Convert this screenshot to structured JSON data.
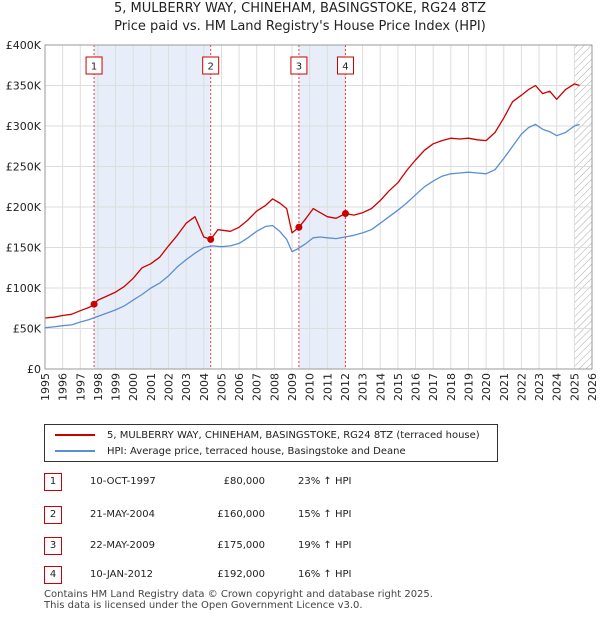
{
  "title_line1": "5, MULBERRY WAY, CHINEHAM, BASINGSTOKE, RG24 8TZ",
  "title_line2": "Price paid vs. HM Land Registry's House Price Index (HPI)",
  "colors": {
    "property": "#cc0000",
    "hpi": "#5b8fcf",
    "shade": "#e8eef9",
    "marker_line": "#dd4444",
    "hatch": "#aaaaaa"
  },
  "chart_data": {
    "type": "line",
    "title": "5, MULBERRY WAY, CHINEHAM, BASINGSTOKE, RG24 8TZ — Price paid vs. HM Land Registry's House Price Index (HPI)",
    "xlabel": "",
    "ylabel": "",
    "xlim": [
      1995,
      2026
    ],
    "ylim": [
      0,
      400000
    ],
    "x_ticks": [
      1995,
      1996,
      1997,
      1998,
      1999,
      2000,
      2001,
      2002,
      2003,
      2004,
      2005,
      2006,
      2007,
      2008,
      2009,
      2010,
      2011,
      2012,
      2013,
      2014,
      2015,
      2016,
      2017,
      2018,
      2019,
      2020,
      2021,
      2022,
      2023,
      2024,
      2025,
      2026
    ],
    "y_ticks": [
      0,
      50000,
      100000,
      150000,
      200000,
      250000,
      300000,
      350000,
      400000
    ],
    "y_tick_labels": [
      "£0",
      "£50K",
      "£100K",
      "£150K",
      "£200K",
      "£250K",
      "£300K",
      "£350K",
      "£400K"
    ],
    "grid": true,
    "shaded_ranges": [
      [
        1997.78,
        2004.39
      ],
      [
        2009.39,
        2012.03
      ]
    ],
    "forecast_from": 2025.0,
    "series": [
      {
        "name": "5, MULBERRY WAY, CHINEHAM, BASINGSTOKE, RG24 8TZ (terraced house)",
        "x": [
          1995,
          1995.5,
          1996,
          1996.5,
          1997,
          1997.5,
          1997.78,
          1998,
          1998.5,
          1999,
          1999.5,
          2000,
          2000.5,
          2001,
          2001.5,
          2002,
          2002.5,
          2003,
          2003.5,
          2004,
          2004.39,
          2004.8,
          2005.5,
          2006,
          2006.5,
          2007,
          2007.5,
          2007.9,
          2008.3,
          2008.7,
          2009,
          2009.39,
          2009.8,
          2010.2,
          2010.6,
          2011,
          2011.5,
          2012.03,
          2012.5,
          2013,
          2013.5,
          2014,
          2014.5,
          2015,
          2015.5,
          2016,
          2016.5,
          2017,
          2017.5,
          2018,
          2018.5,
          2019,
          2019.5,
          2020,
          2020.5,
          2021,
          2021.5,
          2022,
          2022.4,
          2022.8,
          2023.2,
          2023.6,
          2024,
          2024.5,
          2025,
          2025.3
        ],
        "values": [
          63000,
          64000,
          66000,
          67500,
          72000,
          76000,
          80000,
          85000,
          90000,
          95000,
          102000,
          112000,
          125000,
          130000,
          138000,
          152000,
          165000,
          180000,
          188000,
          163000,
          160000,
          172000,
          170000,
          175000,
          184000,
          195000,
          202000,
          210000,
          205000,
          198000,
          168000,
          175000,
          186000,
          198000,
          193000,
          188000,
          186000,
          192000,
          190000,
          193000,
          198000,
          208000,
          220000,
          230000,
          245000,
          258000,
          270000,
          278000,
          282000,
          285000,
          284000,
          285000,
          283000,
          282000,
          292000,
          310000,
          330000,
          338000,
          345000,
          350000,
          340000,
          343000,
          333000,
          345000,
          352000,
          350000
        ]
      },
      {
        "name": "HPI: Average price, terraced house, Basingstoke and Deane",
        "x": [
          1995,
          1995.5,
          1996,
          1996.5,
          1997,
          1997.5,
          1998,
          1998.5,
          1999,
          1999.5,
          2000,
          2000.5,
          2001,
          2001.5,
          2002,
          2002.5,
          2003,
          2003.5,
          2004,
          2004.5,
          2005,
          2005.5,
          2006,
          2006.5,
          2007,
          2007.5,
          2007.9,
          2008.3,
          2008.7,
          2009,
          2009.3,
          2009.8,
          2010.2,
          2010.6,
          2011,
          2011.5,
          2012,
          2012.5,
          2013,
          2013.5,
          2014,
          2014.5,
          2015,
          2015.5,
          2016,
          2016.5,
          2017,
          2017.5,
          2018,
          2018.5,
          2019,
          2019.5,
          2020,
          2020.5,
          2021,
          2021.5,
          2022,
          2022.4,
          2022.8,
          2023.2,
          2023.6,
          2024,
          2024.5,
          2025,
          2025.3
        ],
        "values": [
          51000,
          52000,
          53500,
          54500,
          58000,
          61000,
          65000,
          69000,
          73000,
          78000,
          85000,
          92000,
          100000,
          106000,
          115000,
          126000,
          135000,
          143000,
          150000,
          152000,
          151000,
          152000,
          155000,
          162000,
          170000,
          176000,
          177000,
          170000,
          160000,
          145000,
          148000,
          155000,
          162000,
          163000,
          162000,
          161000,
          163000,
          165000,
          168000,
          172000,
          180000,
          188000,
          196000,
          205000,
          215000,
          225000,
          232000,
          238000,
          241000,
          242000,
          243000,
          242000,
          241000,
          246000,
          260000,
          275000,
          290000,
          298000,
          302000,
          296000,
          293000,
          288000,
          292000,
          300000,
          302000
        ]
      }
    ],
    "markers": [
      {
        "label": "1",
        "x": 1997.78,
        "value": 80000
      },
      {
        "label": "2",
        "x": 2004.39,
        "value": 160000
      },
      {
        "label": "3",
        "x": 2009.39,
        "value": 175000
      },
      {
        "label": "4",
        "x": 2012.03,
        "value": 192000
      }
    ]
  },
  "legend": {
    "property": "5, MULBERRY WAY, CHINEHAM, BASINGSTOKE, RG24 8TZ (terraced house)",
    "hpi": "HPI: Average price, terraced house, Basingstoke and Deane"
  },
  "transactions": [
    {
      "num": "1",
      "date": "10-OCT-1997",
      "price": "£80,000",
      "hpi": "23% ↑ HPI"
    },
    {
      "num": "2",
      "date": "21-MAY-2004",
      "price": "£160,000",
      "hpi": "15% ↑ HPI"
    },
    {
      "num": "3",
      "date": "22-MAY-2009",
      "price": "£175,000",
      "hpi": "19% ↑ HPI"
    },
    {
      "num": "4",
      "date": "10-JAN-2012",
      "price": "£192,000",
      "hpi": "16% ↑ HPI"
    }
  ],
  "footer_line1": "Contains HM Land Registry data © Crown copyright and database right 2025.",
  "footer_line2": "This data is licensed under the Open Government Licence v3.0."
}
